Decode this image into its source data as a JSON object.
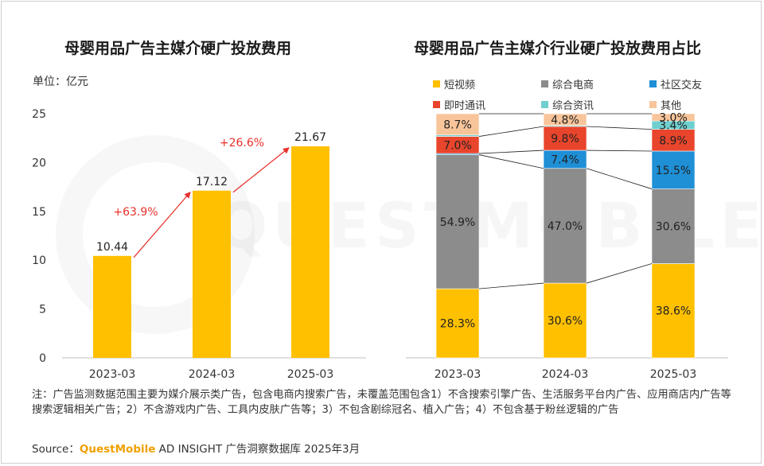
{
  "left_title": "母婴用品广告主媒介硬广投放费用",
  "right_title": "母婴用品广告主媒介行业硬广投放费用占比",
  "unit_label": "单位：亿元",
  "watermark": "QUESTMOBILE",
  "legend": [
    {
      "name": "短视频",
      "color": "#ffc000"
    },
    {
      "name": "综合电商",
      "color": "#8c8c8c"
    },
    {
      "name": "社区交友",
      "color": "#1f8fd6"
    },
    {
      "name": "即时通讯",
      "color": "#e8452c"
    },
    {
      "name": "综合资讯",
      "color": "#6fcfcf"
    },
    {
      "name": "其他",
      "color": "#f8c49a"
    }
  ],
  "footnote": "注：广告监测数据范围主要为媒介展示类广告，包含电商内搜索广告，未覆盖范围包含1）不含搜索引擎广告、生活服务平台内广告、应用商店内广告等搜索逻辑相关广告；2）不含游戏内广告、工具内皮肤广告等；3）不包含剧综冠名、植入广告；4）不包含基于粉丝逻辑的广告",
  "source_prefix": "Source：",
  "source_brand": "QuestMobile",
  "source_suffix": " AD INSIGHT 广告洞察数据库 2025年3月",
  "chart_data": [
    {
      "type": "bar",
      "title": "母婴用品广告主媒介硬广投放费用",
      "ylabel": "单位：亿元",
      "categories": [
        "2023-03",
        "2024-03",
        "2025-03"
      ],
      "values": [
        10.44,
        17.12,
        21.67
      ],
      "value_labels": [
        "10.44",
        "17.12",
        "21.67"
      ],
      "ylim": [
        0,
        25
      ],
      "yticks": [
        0,
        5,
        10,
        15,
        20,
        25
      ],
      "growth_labels": [
        "+63.9%",
        "+26.6%"
      ],
      "bar_color": "#ffc000",
      "arrow_color": "#e8302a",
      "grid": false
    },
    {
      "type": "bar",
      "stacked": true,
      "percent": true,
      "title": "母婴用品广告主媒介行业硬广投放费用占比",
      "categories": [
        "2023-03",
        "2024-03",
        "2025-03"
      ],
      "series": [
        {
          "name": "短视频",
          "values": [
            28.3,
            30.6,
            38.6
          ],
          "labels": [
            "28.3%",
            "30.6%",
            "38.6%"
          ]
        },
        {
          "name": "综合电商",
          "values": [
            54.9,
            47.0,
            30.6
          ],
          "labels": [
            "54.9%",
            "47.0%",
            "30.6%"
          ]
        },
        {
          "name": "社区交友",
          "values": [
            0.5,
            7.4,
            15.5
          ],
          "labels": [
            "",
            "7.4%",
            "15.5%"
          ]
        },
        {
          "name": "即时通讯",
          "values": [
            7.0,
            9.8,
            8.9
          ],
          "labels": [
            "7.0%",
            "9.8%",
            "8.9%"
          ]
        },
        {
          "name": "综合资讯",
          "values": [
            0.6,
            0.4,
            3.4
          ],
          "labels": [
            "",
            "",
            "3.4%"
          ]
        },
        {
          "name": "其他",
          "values": [
            8.7,
            4.8,
            3.0
          ],
          "labels": [
            "8.7%",
            "4.8%",
            "3.0%"
          ]
        }
      ],
      "legend_position": "top"
    }
  ]
}
